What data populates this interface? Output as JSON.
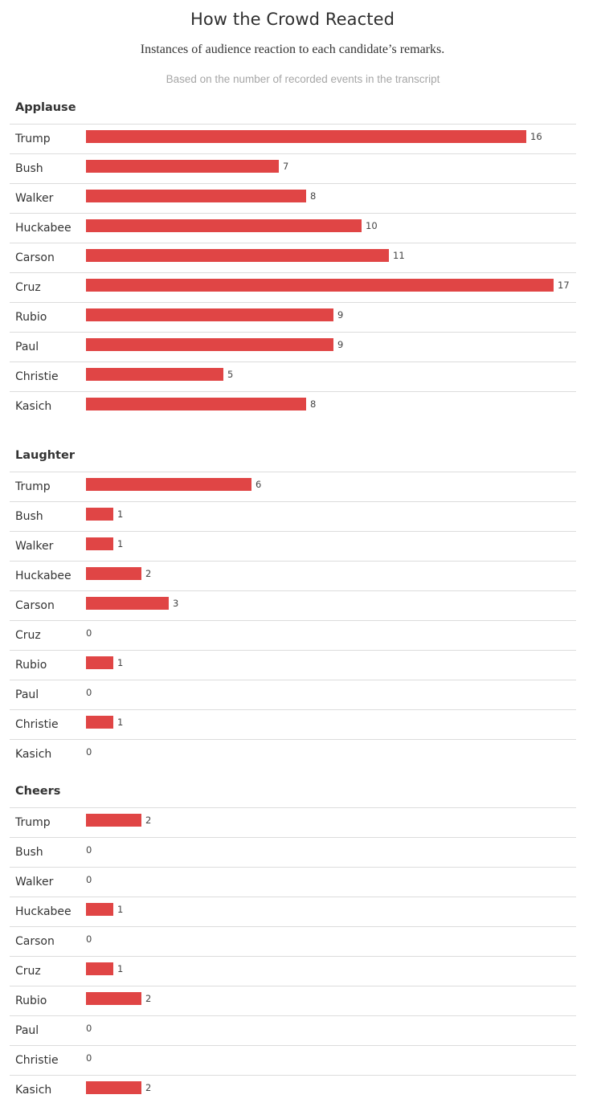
{
  "header": {
    "title": "How the Crowd Reacted",
    "subtitle": "Instances of audience reaction to each candidate’s remarks.",
    "note": "Based on the number of recorded events in the transcript"
  },
  "colors": {
    "bar": "#e04545",
    "divider": "#dcdcdc",
    "note_text": "#a6a6a6"
  },
  "chart_data": [
    {
      "type": "bar",
      "orientation": "horizontal",
      "title": "Applause",
      "categories": [
        "Trump",
        "Bush",
        "Walker",
        "Huckabee",
        "Carson",
        "Cruz",
        "Rubio",
        "Paul",
        "Christie",
        "Kasich"
      ],
      "values": [
        16,
        7,
        8,
        10,
        11,
        17,
        9,
        9,
        5,
        8
      ],
      "xlim": [
        0,
        17
      ]
    },
    {
      "type": "bar",
      "orientation": "horizontal",
      "title": "Laughter",
      "categories": [
        "Trump",
        "Bush",
        "Walker",
        "Huckabee",
        "Carson",
        "Cruz",
        "Rubio",
        "Paul",
        "Christie",
        "Kasich"
      ],
      "values": [
        6,
        1,
        1,
        2,
        3,
        0,
        1,
        0,
        1,
        0
      ],
      "xlim": [
        0,
        17
      ]
    },
    {
      "type": "bar",
      "orientation": "horizontal",
      "title": "Cheers",
      "categories": [
        "Trump",
        "Bush",
        "Walker",
        "Huckabee",
        "Carson",
        "Cruz",
        "Rubio",
        "Paul",
        "Christie",
        "Kasich"
      ],
      "values": [
        2,
        0,
        0,
        1,
        0,
        1,
        2,
        0,
        0,
        2
      ],
      "xlim": [
        0,
        17
      ]
    }
  ]
}
